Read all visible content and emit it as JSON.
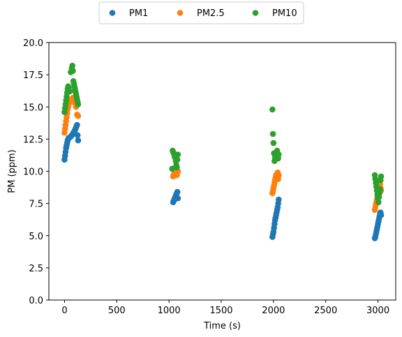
{
  "chart_data": {
    "type": "scatter",
    "xlabel": "Time (s)",
    "ylabel": "PM (ppm)",
    "xlim": [
      -150,
      3170
    ],
    "ylim": [
      0,
      20
    ],
    "xticks": [
      0,
      500,
      1000,
      1500,
      2000,
      2500,
      3000
    ],
    "yticks": [
      0.0,
      2.5,
      5.0,
      7.5,
      10.0,
      12.5,
      15.0,
      17.5,
      20.0
    ],
    "grid": false,
    "legend_position": "top-center",
    "series": [
      {
        "name": "PM1",
        "color": "#1f77b4",
        "x": [
          0,
          5,
          10,
          15,
          20,
          25,
          30,
          35,
          40,
          45,
          60,
          70,
          80,
          85,
          90,
          95,
          100,
          105,
          110,
          115,
          120,
          125,
          130,
          1040,
          1045,
          1050,
          1055,
          1060,
          1065,
          1070,
          1075,
          1080,
          1085,
          1990,
          1995,
          2000,
          2005,
          2010,
          2015,
          2020,
          2025,
          2030,
          2035,
          2040,
          2045,
          2050,
          2970,
          2975,
          2980,
          2985,
          2990,
          2995,
          3000,
          3005,
          3010,
          3015,
          3020,
          3025,
          3030
        ],
        "y": [
          10.9,
          11.2,
          11.5,
          11.8,
          12.0,
          12.2,
          12.4,
          12.5,
          12.6,
          12.6,
          12.7,
          12.8,
          12.9,
          13.0,
          13.0,
          13.1,
          13.2,
          13.3,
          13.4,
          13.5,
          13.6,
          12.8,
          12.4,
          7.6,
          7.7,
          7.8,
          7.9,
          8.0,
          8.1,
          8.2,
          8.3,
          8.4,
          7.9,
          4.9,
          5.1,
          5.3,
          5.6,
          5.9,
          6.2,
          6.4,
          6.6,
          6.8,
          7.0,
          7.2,
          7.5,
          7.8,
          4.8,
          4.9,
          5.1,
          5.3,
          5.5,
          5.7,
          5.9,
          6.1,
          6.3,
          6.5,
          6.7,
          6.8,
          6.6
        ]
      },
      {
        "name": "PM2.5",
        "color": "#ff7f0e",
        "x": [
          0,
          5,
          10,
          15,
          20,
          25,
          30,
          35,
          40,
          50,
          60,
          70,
          80,
          90,
          100,
          110,
          120,
          130,
          1040,
          1045,
          1050,
          1055,
          1060,
          1065,
          1070,
          1075,
          1080,
          1085,
          1990,
          1995,
          2000,
          2005,
          2010,
          2015,
          2020,
          2025,
          2030,
          2035,
          2040,
          2045,
          2050,
          2970,
          2975,
          2980,
          2985,
          2990,
          2995,
          3000,
          3005,
          3010,
          3015,
          3020,
          3025,
          3030
        ],
        "y": [
          13.0,
          13.3,
          13.6,
          13.9,
          14.2,
          14.5,
          14.8,
          15.0,
          15.2,
          15.4,
          15.5,
          15.6,
          15.7,
          15.5,
          15.3,
          15.0,
          14.4,
          14.3,
          9.6,
          9.7,
          9.8,
          9.9,
          10.0,
          10.1,
          9.8,
          9.7,
          9.9,
          10.0,
          8.3,
          8.5,
          8.7,
          8.9,
          9.1,
          9.3,
          9.5,
          9.7,
          9.6,
          9.8,
          9.9,
          9.4,
          9.7,
          7.0,
          7.2,
          7.4,
          7.6,
          7.8,
          8.0,
          8.2,
          8.4,
          8.6,
          8.8,
          9.0,
          8.7,
          8.5
        ]
      },
      {
        "name": "PM10",
        "color": "#2ca02c",
        "x": [
          0,
          5,
          10,
          15,
          20,
          25,
          30,
          35,
          40,
          50,
          60,
          70,
          75,
          80,
          85,
          90,
          95,
          100,
          105,
          110,
          115,
          120,
          125,
          130,
          1030,
          1035,
          1040,
          1045,
          1050,
          1055,
          1060,
          1065,
          1070,
          1075,
          1080,
          1085,
          1990,
          1995,
          2000,
          2005,
          2010,
          2015,
          2020,
          2025,
          2030,
          2035,
          2040,
          2045,
          2050,
          2970,
          2975,
          2980,
          2985,
          2990,
          2995,
          3000,
          3005,
          3010,
          3015,
          3020,
          3025,
          3030
        ],
        "y": [
          14.6,
          14.9,
          15.2,
          15.5,
          15.8,
          16.1,
          16.4,
          16.6,
          16.5,
          16.2,
          17.7,
          18.0,
          18.2,
          17.8,
          17.0,
          16.8,
          16.6,
          16.4,
          16.2,
          16.0,
          15.8,
          15.6,
          15.4,
          15.2,
          10.2,
          11.6,
          11.5,
          11.4,
          11.3,
          11.1,
          11.2,
          10.8,
          10.5,
          10.3,
          10.9,
          11.3,
          14.8,
          12.9,
          12.2,
          11.4,
          10.8,
          11.1,
          11.3,
          11.2,
          11.5,
          11.6,
          11.4,
          11.0,
          11.3,
          9.7,
          9.4,
          9.1,
          8.8,
          8.5,
          8.2,
          7.9,
          7.6,
          8.0,
          8.3,
          8.6,
          9.3,
          9.6
        ]
      }
    ]
  }
}
